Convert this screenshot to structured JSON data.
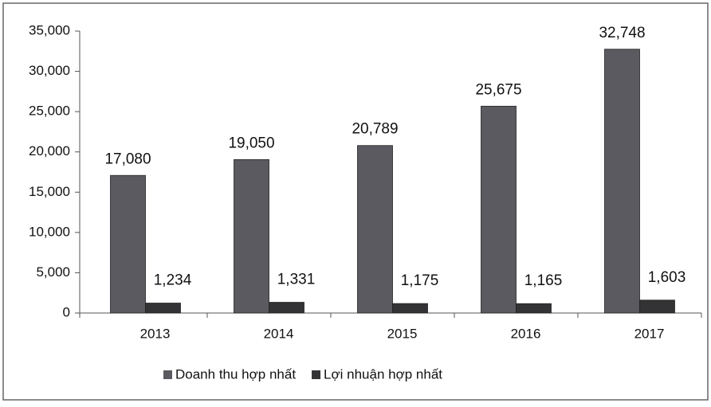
{
  "chart_data": {
    "type": "bar",
    "categories": [
      "2013",
      "2014",
      "2015",
      "2016",
      "2017"
    ],
    "series": [
      {
        "name": "Doanh thu hợp nhất",
        "color": "#5a5a60",
        "values": [
          17080,
          19050,
          20789,
          25675,
          32748
        ],
        "value_labels": [
          "17,080",
          "19,050",
          "20,789",
          "25,675",
          "32,748"
        ]
      },
      {
        "name": "Lợi nhuận hợp nhất",
        "color": "#333336",
        "values": [
          1234,
          1331,
          1175,
          1165,
          1603
        ],
        "value_labels": [
          "1,234",
          "1,331",
          "1,175",
          "1,165",
          "1,603"
        ]
      }
    ],
    "ylim": [
      0,
      35000
    ],
    "yticks": [
      0,
      {
        "value": 5000,
        "label": "5,000"
      },
      {
        "value": 10000,
        "label": "10,000"
      },
      {
        "value": 15000,
        "label": "15,000"
      },
      {
        "value": 20000,
        "label": "20,000"
      },
      {
        "value": 25000,
        "label": "25,000"
      },
      {
        "value": 30000,
        "label": "30,000"
      },
      {
        "value": 35000,
        "label": "35,000"
      }
    ],
    "legend": "bottom"
  }
}
